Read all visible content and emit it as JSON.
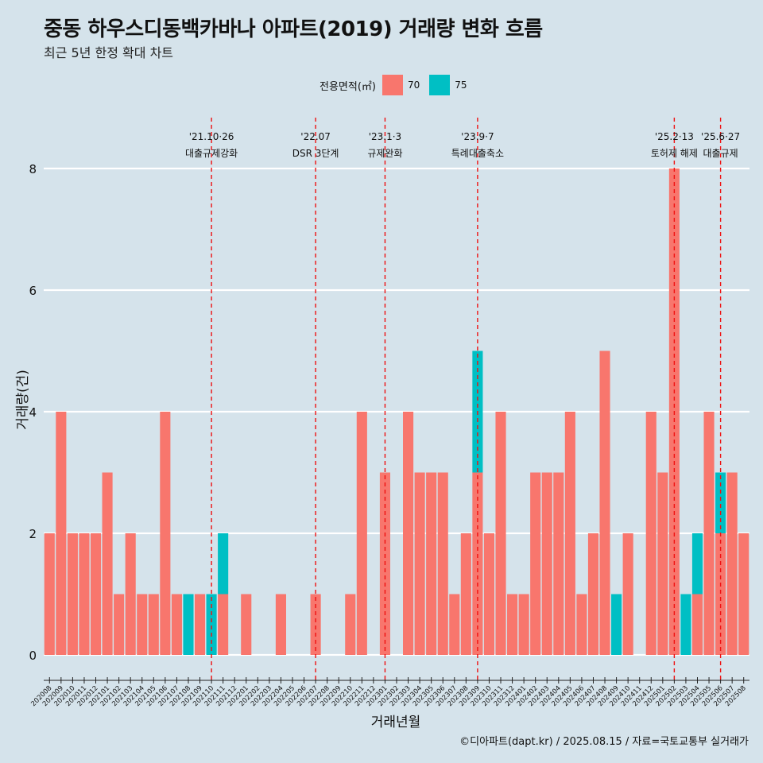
{
  "title": "중동 하우스디동백카바나 아파트(2019) 거래량 변화 흐름",
  "subtitle": "최근 5년 한정 확대 차트",
  "caption": "©디아파트(dapt.kr) / 2025.08.15 / 자료=국토교통부 실거래가",
  "legend": {
    "title": "전용면적(㎡)",
    "items": [
      {
        "label": "70",
        "color": "#f8766d"
      },
      {
        "label": "75",
        "color": "#00bfc4"
      }
    ]
  },
  "chart_data": {
    "type": "bar",
    "stacked": true,
    "xlabel": "거래년월",
    "ylabel": "거래량(건)",
    "ylim": [
      0,
      8
    ],
    "yticks": [
      0,
      2,
      4,
      6,
      8
    ],
    "grid": "horizontal",
    "legend_position": "top",
    "categories": [
      "202008",
      "202009",
      "202010",
      "202011",
      "202012",
      "202101",
      "202102",
      "202103",
      "202104",
      "202105",
      "202106",
      "202107",
      "202108",
      "202109",
      "202110",
      "202111",
      "202112",
      "202201",
      "202202",
      "202203",
      "202204",
      "202205",
      "202206",
      "202207",
      "202208",
      "202209",
      "202210",
      "202211",
      "202212",
      "202301",
      "202302",
      "202303",
      "202304",
      "202305",
      "202306",
      "202307",
      "202308",
      "202309",
      "202310",
      "202311",
      "202312",
      "202401",
      "202402",
      "202403",
      "202404",
      "202405",
      "202406",
      "202407",
      "202408",
      "202409",
      "202410",
      "202411",
      "202412",
      "202501",
      "202502",
      "202503",
      "202504",
      "202505",
      "202506",
      "202507",
      "202508"
    ],
    "series": [
      {
        "name": "70",
        "color": "#f8766d",
        "values": [
          2,
          4,
          2,
          2,
          2,
          3,
          1,
          2,
          1,
          1,
          4,
          1,
          0,
          1,
          0,
          1,
          0,
          1,
          0,
          0,
          1,
          0,
          0,
          1,
          0,
          0,
          1,
          4,
          0,
          3,
          0,
          4,
          3,
          3,
          3,
          1,
          2,
          3,
          2,
          4,
          1,
          1,
          3,
          3,
          3,
          4,
          1,
          2,
          5,
          0,
          2,
          0,
          4,
          3,
          8,
          0,
          1,
          4,
          2,
          3,
          2
        ]
      },
      {
        "name": "75",
        "color": "#00bfc4",
        "values": [
          0,
          0,
          0,
          0,
          0,
          0,
          0,
          0,
          0,
          0,
          0,
          0,
          1,
          0,
          1,
          1,
          0,
          0,
          0,
          0,
          0,
          0,
          0,
          0,
          0,
          0,
          0,
          0,
          0,
          0,
          0,
          0,
          0,
          0,
          0,
          0,
          0,
          2,
          0,
          0,
          0,
          0,
          0,
          0,
          0,
          0,
          0,
          0,
          0,
          1,
          0,
          0,
          0,
          0,
          0,
          1,
          1,
          0,
          1,
          0,
          0
        ]
      }
    ],
    "annotations": [
      {
        "x": "202110",
        "date": "'21.10·26",
        "label": "대출규제강화"
      },
      {
        "x": "202207",
        "date": "'22.07",
        "label": "DSR 3단계"
      },
      {
        "x": "202301",
        "date": "'23.1·3",
        "label": "규제완화"
      },
      {
        "x": "202309",
        "date": "'23.9·7",
        "label": "특례대출축소"
      },
      {
        "x": "202502",
        "date": "'25.2·13",
        "label": "토허제 해제"
      },
      {
        "x": "202506",
        "date": "'25.6·27",
        "label": "대출규제"
      }
    ]
  }
}
